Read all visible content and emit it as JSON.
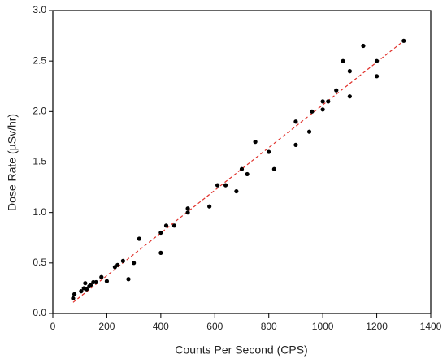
{
  "chart_data": {
    "type": "scatter",
    "x_label": "Counts Per Second (CPS)",
    "y_label": "Dose Rate (µSv/hr)",
    "xlim": [
      0,
      1400
    ],
    "xticks": [
      0,
      200,
      400,
      600,
      800,
      1000,
      1200,
      1400
    ],
    "ylim": [
      0,
      3
    ],
    "yticks": [
      {
        "value": 0,
        "label": "0.0"
      },
      0.5,
      {
        "value": 1,
        "label": "1.0"
      },
      1.5,
      {
        "value": 2,
        "label": "2.0"
      },
      2.5,
      {
        "value": 3,
        "label": "3.0"
      }
    ],
    "color": "#000000",
    "x": [
      75,
      80,
      105,
      115,
      120,
      125,
      135,
      140,
      150,
      160,
      180,
      200,
      230,
      240,
      260,
      280,
      300,
      320,
      400,
      400,
      420,
      450,
      500,
      500,
      580,
      610,
      640,
      680,
      700,
      720,
      750,
      800,
      820,
      900,
      900,
      950,
      960,
      1000,
      1000,
      1020,
      1050,
      1075,
      1100,
      1100,
      1150,
      1200,
      1200,
      1300
    ],
    "y": [
      0.15,
      0.19,
      0.22,
      0.25,
      0.3,
      0.24,
      0.27,
      0.28,
      0.31,
      0.31,
      0.36,
      0.32,
      0.46,
      0.48,
      0.52,
      0.34,
      0.5,
      0.74,
      0.6,
      0.8,
      0.87,
      0.87,
      1.04,
      1.0,
      1.06,
      1.27,
      1.27,
      1.21,
      1.43,
      1.38,
      1.7,
      1.6,
      1.43,
      1.9,
      1.67,
      1.8,
      2.0,
      2.1,
      2.02,
      2.1,
      2.21,
      2.5,
      2.4,
      2.15,
      2.65,
      2.5,
      2.35,
      2.7
    ],
    "fit_line": {
      "x": [
        75,
        1300
      ],
      "y": [
        0.11,
        2.7
      ],
      "color": "#e0302a",
      "dashed": true
    }
  }
}
